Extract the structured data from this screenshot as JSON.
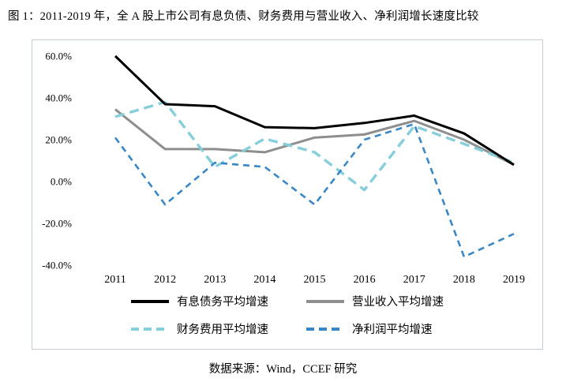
{
  "title": "图 1：2011-2019 年，全 A 股上市公司有息负债、财务费用与营业收入、净利润增长速度比较",
  "source": "数据来源：Wind，CCEF 研究",
  "chart_data": {
    "type": "line",
    "x": [
      "2011",
      "2012",
      "2013",
      "2014",
      "2015",
      "2016",
      "2017",
      "2018",
      "2019"
    ],
    "series": [
      {
        "name": "有息债务平均增速",
        "color": "#000000",
        "dash": "solid",
        "values": [
          60,
          37,
          36,
          26,
          25.5,
          28,
          31.5,
          23,
          8
        ]
      },
      {
        "name": "营业收入平均增速",
        "color": "#8e8e8e",
        "dash": "solid",
        "values": [
          34.5,
          15.5,
          15.5,
          14,
          21,
          22.5,
          29,
          20,
          8
        ]
      },
      {
        "name": "财务费用平均增速",
        "color": "#85ceda",
        "dash": "dashed",
        "values": [
          31,
          38,
          7,
          20.5,
          14,
          -4,
          26.5,
          18,
          9
        ]
      },
      {
        "name": "净利润平均增速",
        "color": "#3987c6",
        "dash": "dashed",
        "values": [
          21,
          -11,
          9,
          7,
          -11,
          20,
          27.5,
          -36,
          -25
        ]
      }
    ],
    "ylim": [
      -40,
      60
    ],
    "ytick_step": 20,
    "ytick_labels": [
      "60.0%",
      "40.0%",
      "20.0%",
      "0.0%",
      "-20.0%",
      "-40.0%"
    ],
    "grid": false,
    "legend_position": "bottom"
  }
}
